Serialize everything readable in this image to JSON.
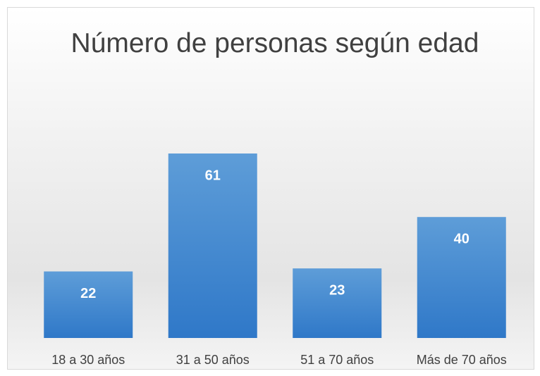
{
  "chart_data": {
    "type": "bar",
    "title": "Número de personas según edad",
    "categories": [
      "18 a 30 años",
      "31 a 50 años",
      "51 a 70 años",
      "Más de 70 años"
    ],
    "values": [
      22,
      61,
      23,
      40
    ],
    "color": "#4a8ad2"
  }
}
